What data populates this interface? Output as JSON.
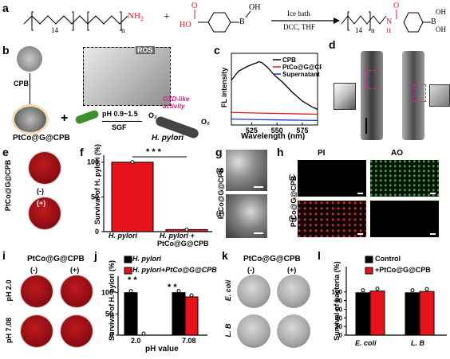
{
  "panels": {
    "a": {
      "label": "a",
      "reactant1_subscript14": "14",
      "reactant1_subscript_n": "n",
      "reactant1_nh2": "NH",
      "reactant1_nh2_sub": "2",
      "plus": "+",
      "reactant2_ho": "HO",
      "reactant2_o": "O",
      "reactant2_b": "B",
      "reactant2_oh": "OH",
      "arrow_top": "Ice bath",
      "arrow_bottom": "DCC, THF",
      "product_14": "14",
      "product_n": "n",
      "product_nh": "N",
      "product_h": "H",
      "product_o": "O",
      "product_b": "B",
      "product_oh1": "OH",
      "product_oh2": "OH"
    },
    "b": {
      "label": "b",
      "cpb": "CPB",
      "ros": "ROS",
      "ph": "pH 0.9~1.5",
      "sgf": "SGF",
      "oxd": "OXD-like activity",
      "plus": "+",
      "bottom_left": "PtCo@G@CPB",
      "bottom_right": "H. pylori",
      "o2_1": "O₂",
      "o2_2": "O₂"
    },
    "c": {
      "label": "c",
      "ylabel": "FL intensity",
      "xlabel": "Wavelength (nm)",
      "xticks": [
        "525",
        "550",
        "575"
      ],
      "legend": [
        "CPB",
        "PtCo@G@CPB",
        "Supernatant"
      ]
    },
    "d": {
      "label": "d"
    },
    "e": {
      "label": "e",
      "side": "PtCo@G@CPB",
      "minus": "(-)",
      "plus": "(+)"
    },
    "f": {
      "label": "f",
      "ylabel": "Survival of H. pylori (%)",
      "yticks": [
        "0",
        "50",
        "100"
      ],
      "sig": "* * *",
      "xcat1": "H. pylori",
      "xcat2a": "H. pylori +",
      "xcat2b": "PtCo@G@CPB"
    },
    "g": {
      "label": "g",
      "side": "PtCo@G@CPB",
      "minus": "(-)",
      "plus": "(+)"
    },
    "h": {
      "label": "h",
      "col1": "PI",
      "col2": "AO",
      "side": "PtCo@G@CPB",
      "minus": "(-)",
      "plus": "(+)"
    },
    "i": {
      "label": "i",
      "top": "PtCo@G@CPB",
      "minus": "(-)",
      "plus": "(+)",
      "row1": "pH 2.0",
      "row2": "pH 7.08"
    },
    "j": {
      "label": "j",
      "ylabel": "Survival of H. pylori (%)",
      "yticks": [
        "0",
        "50",
        "100"
      ],
      "legend1": "H. pylori",
      "legend2": "H. pylori+PtCo@G@CPB",
      "sig1": "* *",
      "sig2": "* *",
      "xticks": [
        "2.0",
        "7.08"
      ],
      "xlabel": "pH value"
    },
    "k": {
      "label": "k",
      "top": "PtCo@G@CPB",
      "minus": "(-)",
      "plus": "(+)",
      "row1": "E. coli",
      "row2": "L. B"
    },
    "l": {
      "label": "l",
      "ylabel": "Survival of bacteria (%)",
      "yticks": [
        "0",
        "20",
        "40",
        "60",
        "80",
        "100"
      ],
      "legend1": "Control",
      "legend2": "+PtCo@G@CPB",
      "xticks": [
        "E. coli",
        "L. B"
      ]
    }
  },
  "chart_data": [
    {
      "type": "line",
      "panel": "c",
      "xlabel": "Wavelength (nm)",
      "ylabel": "FL intensity",
      "xlim": [
        505,
        590
      ],
      "series": [
        {
          "name": "CPB",
          "color": "#000000",
          "x": [
            505,
            512,
            520,
            527,
            530,
            532,
            535,
            540,
            548,
            555,
            565,
            575,
            585,
            590
          ],
          "y": [
            1500,
            1800,
            1950,
            2050,
            2080,
            2120,
            2090,
            1950,
            1650,
            1450,
            1100,
            800,
            600,
            520
          ]
        },
        {
          "name": "PtCo@G@CPB",
          "color": "#e8141b",
          "x": [
            505,
            530,
            560,
            590
          ],
          "y": [
            420,
            400,
            380,
            360
          ]
        },
        {
          "name": "Supernatant",
          "color": "#1a2fd1",
          "x": [
            505,
            530,
            560,
            590
          ],
          "y": [
            200,
            180,
            165,
            150
          ]
        }
      ]
    },
    {
      "type": "bar",
      "panel": "f",
      "categories": [
        "H. pylori",
        "H. pylori + PtCo@G@CPB"
      ],
      "values": [
        100,
        3
      ],
      "ylim": [
        0,
        110
      ],
      "colors": [
        "#e8141b",
        "#e8141b"
      ]
    },
    {
      "type": "bar",
      "panel": "j",
      "categories": [
        "2.0",
        "7.08"
      ],
      "series": [
        {
          "name": "H. pylori",
          "color": "#000000",
          "values": [
            100,
            100
          ]
        },
        {
          "name": "H. pylori+PtCo@G@CPB",
          "color": "#e8141b",
          "values": [
            0,
            90
          ]
        }
      ],
      "ylim": [
        0,
        120
      ]
    },
    {
      "type": "bar",
      "panel": "l",
      "categories": [
        "E. coli",
        "L. B"
      ],
      "series": [
        {
          "name": "Control",
          "color": "#000000",
          "values": [
            98,
            98
          ]
        },
        {
          "name": "+PtCo@G@CPB",
          "color": "#e8141b",
          "values": [
            102,
            101
          ]
        }
      ],
      "ylim": [
        0,
        140
      ]
    }
  ]
}
